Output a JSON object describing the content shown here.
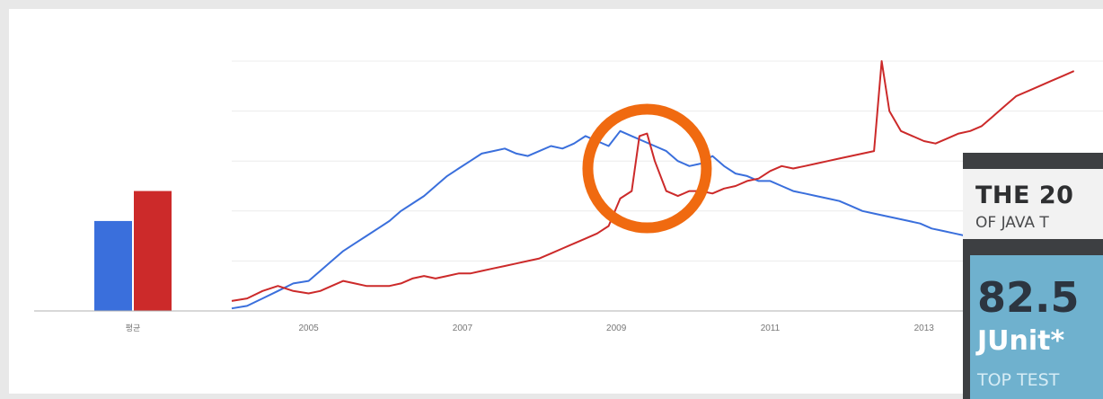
{
  "chart_data": {
    "type": "line",
    "title": "",
    "xlabel": "",
    "ylabel": "",
    "x_ticks": [
      "2005",
      "2007",
      "2009",
      "2011",
      "2013"
    ],
    "xlim": [
      2004.0,
      2015.0
    ],
    "ylim": [
      0,
      100
    ],
    "grid": true,
    "colors": {
      "blue": "#3a6fdc",
      "red": "#cc2a2a",
      "highlight": "#f06a10"
    },
    "average": {
      "label": "평균",
      "values": [
        36,
        48
      ]
    },
    "series": [
      {
        "color": "#3a6fdc",
        "x": [
          2004.0,
          2004.2,
          2004.4,
          2004.6,
          2004.8,
          2005.0,
          2005.15,
          2005.3,
          2005.45,
          2005.6,
          2005.75,
          2005.9,
          2006.05,
          2006.2,
          2006.35,
          2006.5,
          2006.65,
          2006.8,
          2006.95,
          2007.1,
          2007.25,
          2007.4,
          2007.55,
          2007.7,
          2007.85,
          2008.0,
          2008.15,
          2008.3,
          2008.45,
          2008.6,
          2008.75,
          2008.9,
          2009.05,
          2009.2,
          2009.35,
          2009.5,
          2009.65,
          2009.8,
          2009.95,
          2010.1,
          2010.25,
          2010.4,
          2010.55,
          2010.7,
          2010.85,
          2011.0,
          2011.15,
          2011.3,
          2011.45,
          2011.6,
          2011.75,
          2011.9,
          2012.05,
          2012.2,
          2012.35,
          2012.5,
          2012.65,
          2012.8,
          2012.95,
          2013.1,
          2013.25,
          2013.4,
          2013.55,
          2013.7,
          2013.85,
          2014.0,
          2014.15,
          2014.3,
          2014.45,
          2014.6,
          2014.75,
          2014.95
        ],
        "y": [
          1,
          2,
          5,
          8,
          11,
          12,
          16,
          20,
          24,
          27,
          30,
          33,
          36,
          40,
          43,
          46,
          50,
          54,
          57,
          60,
          63,
          64,
          65,
          63,
          62,
          64,
          66,
          65,
          67,
          70,
          68,
          66,
          72,
          70,
          68,
          66,
          64,
          60,
          58,
          59,
          62,
          58,
          55,
          54,
          52,
          52,
          50,
          48,
          47,
          46,
          45,
          44,
          42,
          40,
          39,
          38,
          37,
          36,
          35,
          33,
          32,
          31,
          30,
          30,
          29,
          28,
          27,
          26,
          26,
          25,
          24,
          23
        ]
      },
      {
        "color": "#cc2a2a",
        "x": [
          2004.0,
          2004.2,
          2004.4,
          2004.6,
          2004.8,
          2005.0,
          2005.15,
          2005.3,
          2005.45,
          2005.6,
          2005.75,
          2005.9,
          2006.05,
          2006.2,
          2006.35,
          2006.5,
          2006.65,
          2006.8,
          2006.95,
          2007.1,
          2007.25,
          2007.4,
          2007.55,
          2007.7,
          2007.85,
          2008.0,
          2008.15,
          2008.3,
          2008.45,
          2008.6,
          2008.75,
          2008.9,
          2009.05,
          2009.2,
          2009.3,
          2009.4,
          2009.5,
          2009.65,
          2009.8,
          2009.95,
          2010.1,
          2010.25,
          2010.4,
          2010.55,
          2010.7,
          2010.85,
          2011.0,
          2011.15,
          2011.3,
          2011.45,
          2011.6,
          2011.75,
          2011.9,
          2012.05,
          2012.2,
          2012.35,
          2012.45,
          2012.55,
          2012.7,
          2012.85,
          2013.0,
          2013.15,
          2013.3,
          2013.45,
          2013.6,
          2013.75,
          2013.9,
          2014.05,
          2014.2,
          2014.35,
          2014.5,
          2014.65,
          2014.8,
          2014.95
        ],
        "y": [
          4,
          5,
          8,
          10,
          8,
          7,
          8,
          10,
          12,
          11,
          10,
          10,
          10,
          11,
          13,
          14,
          13,
          14,
          15,
          15,
          16,
          17,
          18,
          19,
          20,
          21,
          23,
          25,
          27,
          29,
          31,
          34,
          45,
          48,
          70,
          71,
          60,
          48,
          46,
          48,
          48,
          47,
          49,
          50,
          52,
          53,
          56,
          58,
          57,
          58,
          59,
          60,
          61,
          62,
          63,
          64,
          100,
          80,
          72,
          70,
          68,
          67,
          69,
          71,
          72,
          74,
          78,
          82,
          86,
          88,
          90,
          92,
          94,
          96
        ]
      }
    ],
    "annotation": {
      "type": "circle",
      "x": 2009.4,
      "y": 57
    }
  },
  "infographic": {
    "title": "THE 20",
    "subtitle": "OF JAVA T",
    "percent": "82.5",
    "tool": "JUnit*",
    "caption": "TOP TEST"
  }
}
